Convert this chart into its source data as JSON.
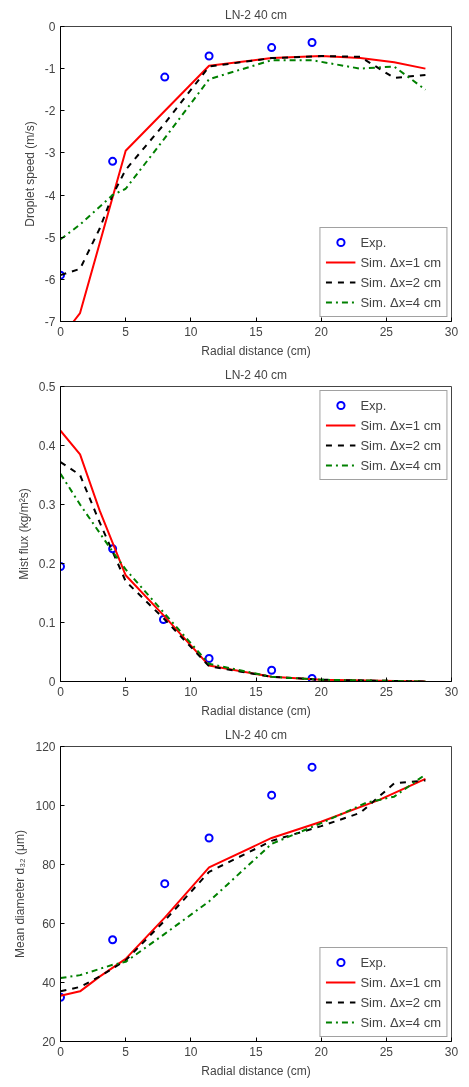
{
  "chart_data": [
    {
      "type": "line",
      "title": "LN-2 40 cm",
      "xlabel": "Radial distance (cm)",
      "ylabel": "Droplet speed (m/s)",
      "xlim": [
        0,
        30
      ],
      "ylim": [
        -7,
        0
      ],
      "xticks": [
        0,
        5,
        10,
        15,
        20,
        25,
        30
      ],
      "yticks": [
        -7,
        -6,
        -5,
        -4,
        -3,
        -2,
        -1,
        0
      ],
      "grid": false,
      "legend": "bottom right",
      "series": [
        {
          "name": "Exp.",
          "type": "scatter",
          "marker": "circle",
          "color": "#0000ff",
          "x": [
            0,
            4,
            8,
            11.4,
            16.2,
            19.3
          ],
          "values": [
            -5.9,
            -3.2,
            -1.2,
            -0.7,
            -0.5,
            -0.38
          ]
        },
        {
          "name": "Sim. Δx=1 cm",
          "type": "line",
          "line_style": "solid",
          "color": "#ff0000",
          "x": [
            1,
            1.5,
            5,
            11.4,
            16.2,
            20,
            23,
            25.6,
            28
          ],
          "values": [
            -7.0,
            -6.8,
            -2.95,
            -0.93,
            -0.75,
            -0.7,
            -0.75,
            -0.85,
            -1.0
          ]
        },
        {
          "name": "Sim. Δx=2 cm",
          "type": "line",
          "line_style": "dashed",
          "color": "#000000",
          "x": [
            0,
            1.5,
            3,
            4,
            5,
            8,
            11.4,
            16.2,
            20,
            23,
            25.6,
            28
          ],
          "values": [
            -5.9,
            -5.75,
            -4.8,
            -4.0,
            -3.4,
            -2.3,
            -0.95,
            -0.75,
            -0.7,
            -0.72,
            -1.22,
            -1.15
          ]
        },
        {
          "name": "Sim. Δx=4 cm",
          "type": "line",
          "line_style": "dashdot",
          "color": "#008000",
          "x": [
            0,
            1.5,
            4,
            5,
            8,
            11.4,
            16.2,
            19.3,
            23,
            25.6,
            28
          ],
          "values": [
            -5.05,
            -4.7,
            -4.0,
            -3.85,
            -2.65,
            -1.25,
            -0.8,
            -0.8,
            -1.0,
            -0.95,
            -1.5
          ]
        }
      ]
    },
    {
      "type": "line",
      "title": "LN-2 40 cm",
      "xlabel": "Radial distance (cm)",
      "ylabel": "Mist flux (kg/m²s)",
      "xlim": [
        0,
        30
      ],
      "ylim": [
        0,
        0.5
      ],
      "xticks": [
        0,
        5,
        10,
        15,
        20,
        25,
        30
      ],
      "yticks": [
        0,
        0.1,
        0.2,
        0.3,
        0.4,
        0.5
      ],
      "grid": false,
      "legend": "top right",
      "series": [
        {
          "name": "Exp.",
          "type": "scatter",
          "marker": "circle",
          "color": "#0000ff",
          "x": [
            0,
            4,
            7.9,
            11.4,
            16.2,
            19.3
          ],
          "values": [
            0.195,
            0.225,
            0.105,
            0.039,
            0.019,
            0.005
          ]
        },
        {
          "name": "Sim. Δx=1 cm",
          "type": "line",
          "line_style": "solid",
          "color": "#ff0000",
          "x": [
            0,
            1.5,
            3,
            5,
            8,
            11.4,
            16.2,
            20,
            28
          ],
          "values": [
            0.425,
            0.385,
            0.29,
            0.18,
            0.11,
            0.027,
            0.008,
            0.003,
            0.0
          ]
        },
        {
          "name": "Sim. Δx=2 cm",
          "type": "line",
          "line_style": "dashed",
          "color": "#000000",
          "x": [
            0,
            1.5,
            3,
            5,
            8,
            11.4,
            16.2,
            20,
            28
          ],
          "values": [
            0.372,
            0.35,
            0.27,
            0.17,
            0.105,
            0.026,
            0.008,
            0.003,
            0.0
          ]
        },
        {
          "name": "Sim. Δx=4 cm",
          "type": "line",
          "line_style": "dashdot",
          "color": "#008000",
          "x": [
            0,
            1.5,
            4,
            5,
            8,
            11.4,
            16.2,
            20,
            28
          ],
          "values": [
            0.352,
            0.3,
            0.22,
            0.19,
            0.115,
            0.03,
            0.008,
            0.003,
            0.0
          ]
        }
      ]
    },
    {
      "type": "line",
      "title": "LN-2 40 cm",
      "xlabel": "Radial distance (cm)",
      "ylabel": "Mean diameter d₃₂ (μm)",
      "xlim": [
        0,
        30
      ],
      "ylim": [
        20,
        120
      ],
      "xticks": [
        0,
        5,
        10,
        15,
        20,
        25,
        30
      ],
      "yticks": [
        20,
        40,
        60,
        80,
        100,
        120
      ],
      "grid": false,
      "legend": "bottom right",
      "series": [
        {
          "name": "Exp.",
          "type": "scatter",
          "marker": "circle",
          "color": "#0000ff",
          "x": [
            0,
            4,
            8,
            11.4,
            16.2,
            19.3
          ],
          "values": [
            35,
            54.5,
            73.5,
            89,
            103.5,
            113
          ]
        },
        {
          "name": "Sim. Δx=1 cm",
          "type": "line",
          "line_style": "solid",
          "color": "#ff0000",
          "x": [
            0,
            1.5,
            3,
            5,
            8,
            11.4,
            16.2,
            20,
            24.5,
            28
          ],
          "values": [
            35.5,
            37,
            42,
            48,
            62,
            79,
            89,
            94.5,
            102,
            109
          ]
        },
        {
          "name": "Sim. Δx=2 cm",
          "type": "line",
          "line_style": "dashed",
          "color": "#000000",
          "x": [
            0,
            1.5,
            3,
            5,
            8,
            11.4,
            16.2,
            20,
            23,
            25.6,
            28
          ],
          "values": [
            37,
            38.5,
            42,
            47.5,
            61,
            77.5,
            88,
            93,
            97.5,
            107.5,
            108.5
          ]
        },
        {
          "name": "Sim. Δx=4 cm",
          "type": "line",
          "line_style": "dashdot",
          "color": "#008000",
          "x": [
            0,
            1.5,
            4,
            5,
            8,
            11.4,
            16.2,
            20,
            23.5,
            25.6,
            28
          ],
          "values": [
            41.5,
            42.5,
            46,
            47,
            56.5,
            67.5,
            87,
            94,
            101,
            103,
            110.5
          ]
        }
      ]
    }
  ]
}
